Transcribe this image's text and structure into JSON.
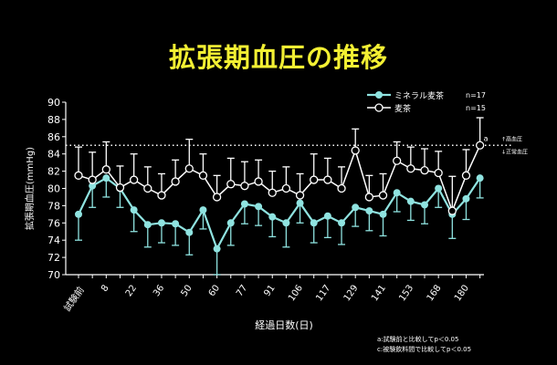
{
  "title": "拡張期血圧の推移",
  "chart_data": {
    "type": "line",
    "title": "拡張期血圧の推移",
    "xlabel": "経過日数(日)",
    "ylabel": "拡張期血圧(mmHg)",
    "ylim": [
      70,
      90
    ],
    "yticks": [
      70,
      72,
      74,
      76,
      78,
      80,
      82,
      84,
      86,
      88,
      90
    ],
    "categories": [
      "試験前",
      "",
      "8",
      "",
      "22",
      "",
      "36",
      "",
      "50",
      "",
      "60",
      "",
      "77",
      "",
      "91",
      "",
      "106",
      "",
      "117",
      "",
      "129",
      "",
      "141",
      "",
      "153",
      "",
      "168",
      "",
      "180",
      ""
    ],
    "grid": false,
    "legend": "top-right",
    "reference_line": {
      "y": 85,
      "style": "dotted",
      "label_upper": "↑高血圧",
      "label_lower": "↓正常血圧"
    },
    "series": [
      {
        "name": "ミネラル麦茶",
        "n": "n=17",
        "marker": "filled-circle",
        "color": "#8fe3e0",
        "values": [
          77.0,
          80.3,
          81.2,
          80.0,
          77.5,
          75.8,
          76.0,
          75.9,
          74.9,
          77.5,
          73.0,
          76.0,
          78.2,
          77.9,
          76.7,
          76.0,
          78.3,
          76.0,
          76.8,
          76.0,
          77.8,
          77.4,
          77.0,
          79.5,
          78.5,
          78.1,
          80.0,
          77.0,
          78.8,
          81.2
        ],
        "error": [
          3.0,
          2.5,
          2.2,
          2.2,
          2.5,
          2.6,
          2.3,
          2.5,
          2.6,
          2.2,
          3.0,
          2.6,
          2.3,
          2.2,
          2.3,
          2.8,
          2.3,
          2.3,
          2.5,
          2.5,
          2.2,
          2.3,
          2.5,
          2.2,
          2.2,
          2.2,
          2.2,
          2.8,
          2.4,
          2.3
        ]
      },
      {
        "name": "麦茶",
        "n": "n=15",
        "marker": "open-circle",
        "color": "#ffffff",
        "values": [
          81.5,
          81.0,
          82.2,
          80.1,
          81.0,
          80.0,
          79.2,
          80.8,
          82.3,
          81.5,
          79.0,
          80.5,
          80.3,
          80.8,
          79.5,
          80.0,
          79.2,
          81.0,
          81.0,
          80.0,
          84.4,
          79.0,
          79.2,
          83.2,
          82.3,
          82.1,
          81.8,
          77.4,
          81.5,
          85.0
        ],
        "error": [
          3.3,
          3.2,
          3.2,
          2.5,
          3.0,
          2.5,
          2.5,
          2.5,
          3.4,
          2.5,
          2.5,
          3.0,
          2.8,
          2.5,
          2.5,
          2.5,
          2.5,
          3.0,
          2.5,
          2.5,
          2.5,
          2.5,
          2.5,
          2.2,
          2.5,
          2.5,
          2.5,
          4.0,
          3.0,
          3.2
        ]
      }
    ],
    "annotations": [
      {
        "index": 29,
        "series": "麦茶",
        "text": "a"
      }
    ]
  },
  "footnotes": [
    "a:試験前と比較してp＜0.05",
    "c:被験飲料間で比較してp＜0.05"
  ]
}
